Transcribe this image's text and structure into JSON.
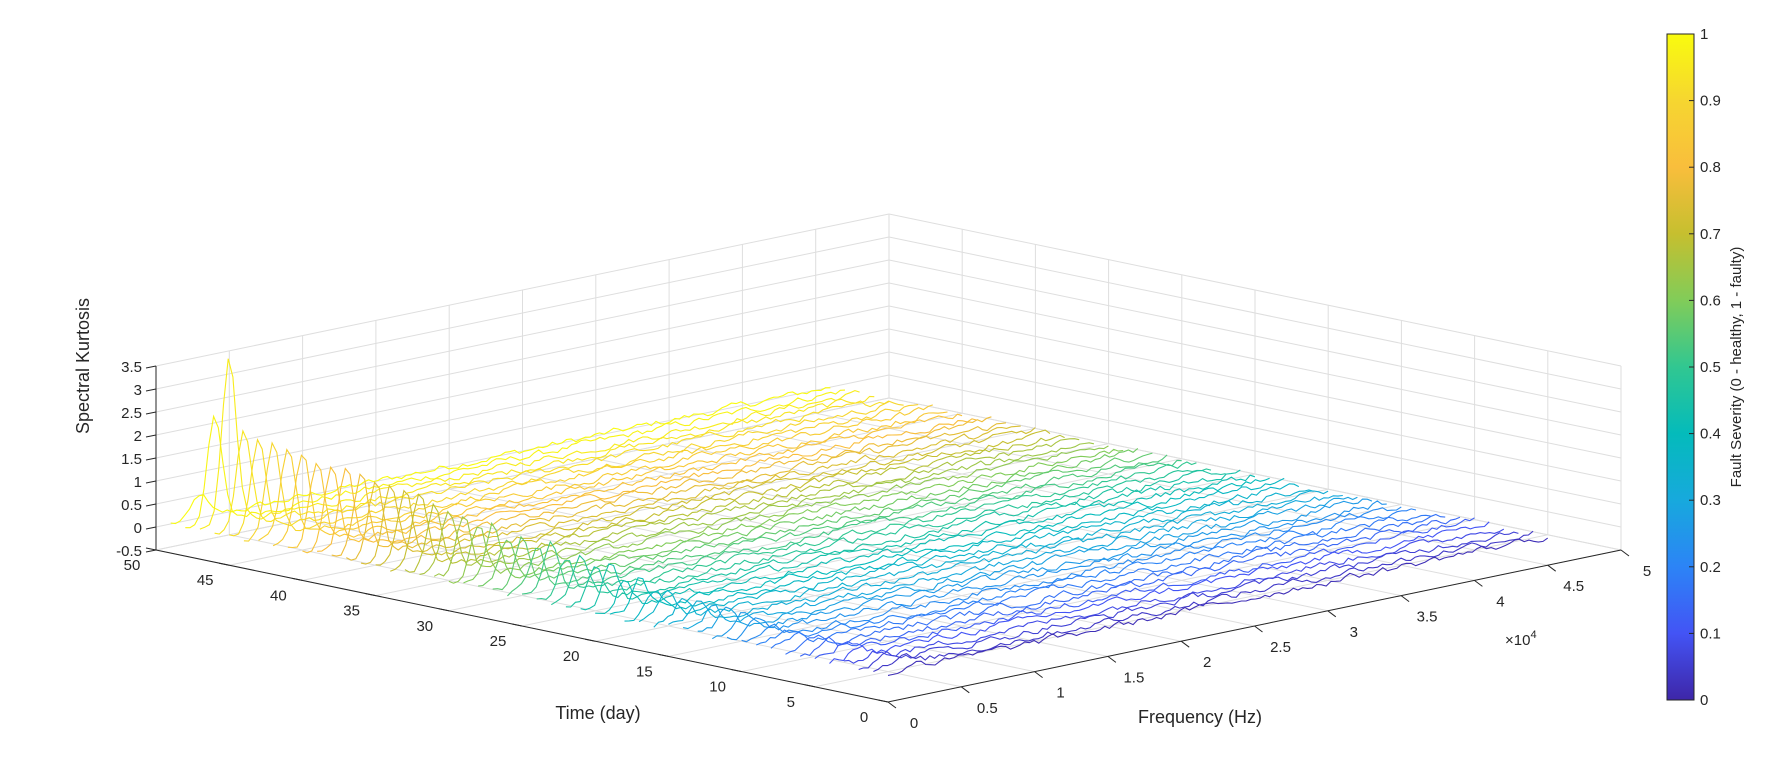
{
  "chart_data": {
    "type": "line",
    "plot_style": "3D waterfall",
    "xlabel": "Frequency (Hz)",
    "ylabel": "Time (day)",
    "zlabel": "Spectral Kurtosis",
    "x_multiplier_label": "×10",
    "x_multiplier_exponent": "4",
    "xlim": [
      0,
      50000
    ],
    "ylim": [
      0,
      50
    ],
    "zlim": [
      -0.5,
      3.5
    ],
    "x_ticks": [
      "0",
      "0.5",
      "1",
      "1.5",
      "2",
      "2.5",
      "3",
      "3.5",
      "4",
      "4.5",
      "5"
    ],
    "y_ticks": [
      "0",
      "5",
      "10",
      "15",
      "20",
      "25",
      "30",
      "35",
      "40",
      "45",
      "50"
    ],
    "z_ticks": [
      "-0.5",
      "0",
      "0.5",
      "1",
      "1.5",
      "2",
      "2.5",
      "3",
      "3.5"
    ],
    "grid": true,
    "days": [
      1,
      2,
      3,
      4,
      5,
      6,
      7,
      8,
      9,
      10,
      11,
      12,
      13,
      14,
      15,
      16,
      17,
      18,
      19,
      20,
      21,
      22,
      23,
      24,
      25,
      26,
      27,
      28,
      29,
      30,
      31,
      32,
      33,
      34,
      35,
      36,
      37,
      38,
      39,
      40,
      41,
      42,
      43,
      44,
      45,
      46,
      47,
      48,
      49,
      50
    ],
    "peak_frequency_hz": 3000,
    "peak_kurtosis_by_day": [
      0.15,
      0.15,
      0.15,
      0.16,
      0.17,
      0.18,
      0.2,
      0.2,
      0.22,
      0.25,
      0.3,
      0.35,
      0.4,
      0.45,
      0.4,
      0.5,
      0.45,
      0.6,
      0.5,
      0.7,
      0.6,
      0.8,
      0.7,
      0.9,
      0.75,
      1.0,
      0.85,
      1.1,
      0.95,
      1.2,
      1.1,
      1.3,
      1.3,
      1.4,
      1.45,
      1.5,
      1.55,
      1.6,
      1.7,
      1.75,
      1.8,
      1.8,
      1.9,
      1.9,
      2.0,
      2.0,
      2.1,
      3.6,
      2.25,
      0.5
    ],
    "baseline_kurtosis": 0.0,
    "noise_amplitude": 0.06,
    "colorbar": {
      "label": "Fault Severity (0 - healthy, 1 - faulty)",
      "ticks": [
        "0",
        "0.1",
        "0.2",
        "0.3",
        "0.4",
        "0.5",
        "0.6",
        "0.7",
        "0.8",
        "0.9",
        "1"
      ],
      "range": [
        0,
        1
      ],
      "colormap": [
        "#3e26a8",
        "#4354f5",
        "#2c84f6",
        "#17a9dd",
        "#04bbbb",
        "#31c791",
        "#81cc59",
        "#c6bf2f",
        "#f9be3c",
        "#f6d630",
        "#f9fb0e"
      ]
    }
  }
}
